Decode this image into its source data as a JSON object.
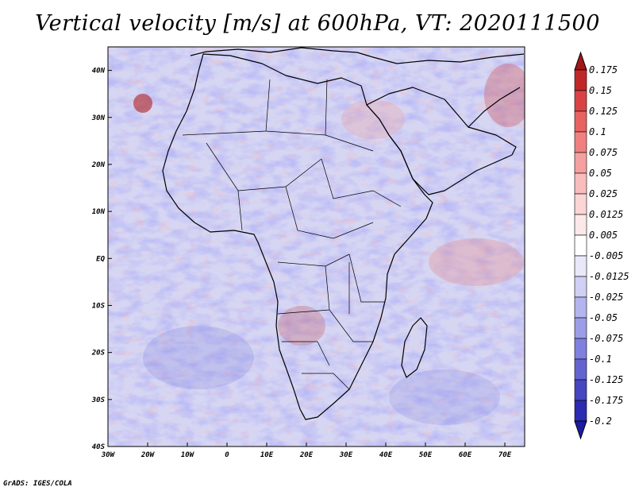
{
  "title": "Vertical velocity [m/s] at 600hPa, VT: 2020111500",
  "credit": "GrADS: IGES/COLA",
  "axes": {
    "x_ticks": [
      "30W",
      "20W",
      "10W",
      "0",
      "10E",
      "20E",
      "30E",
      "40E",
      "50E",
      "60E",
      "70E"
    ],
    "x_values": [
      -30,
      -20,
      -10,
      0,
      10,
      20,
      30,
      40,
      50,
      60,
      70
    ],
    "y_ticks": [
      "40N",
      "30N",
      "20N",
      "10N",
      "EQ",
      "10S",
      "20S",
      "30S",
      "40S"
    ],
    "y_values": [
      40,
      30,
      20,
      10,
      0,
      -10,
      -20,
      -30,
      -40
    ],
    "lon_range": [
      -30,
      75
    ],
    "lat_range": [
      -40,
      45
    ]
  },
  "colorbar": {
    "labels": [
      "0.175",
      "0.15",
      "0.125",
      "0.1",
      "0.075",
      "0.05",
      "0.025",
      "0.0125",
      "0.005",
      "-0.005",
      "-0.0125",
      "-0.025",
      "-0.05",
      "-0.075",
      "-0.1",
      "-0.125",
      "-0.175",
      "-0.2"
    ],
    "colors": [
      "#a01818",
      "#c02828",
      "#d84444",
      "#e86262",
      "#f08080",
      "#f5a0a0",
      "#f8bcbc",
      "#fbd4d4",
      "#fde8e8",
      "#ffffff",
      "#e8e8fa",
      "#d0d0f5",
      "#b4b4ee",
      "#9c9ce8",
      "#8080de",
      "#6464d0",
      "#4646c0",
      "#2c2cb0",
      "#1c1ca0"
    ]
  },
  "colors": {
    "land_line": "#000000",
    "bg_field": "#c9c9ef"
  }
}
